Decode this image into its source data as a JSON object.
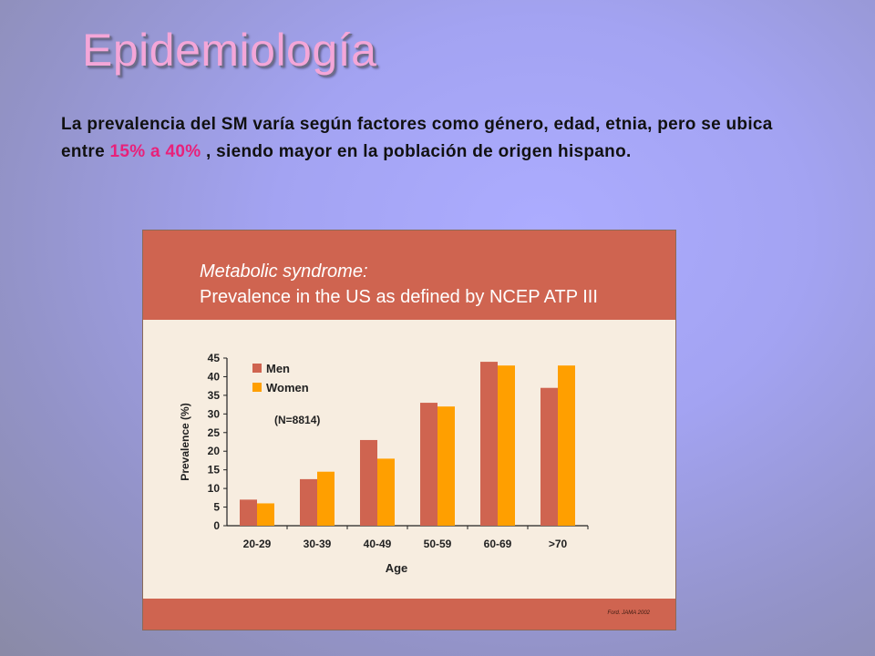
{
  "slide": {
    "title": "Epidemiología",
    "intro_part1": "La prevalencia del SM varía según factores como género, edad, etnia, pero se ubica entre ",
    "intro_highlight": "15% a 40%",
    "intro_part2": " , siendo mayor en la población de origen hispano."
  },
  "colors": {
    "header_band": "#cf6450",
    "men": "#cf6450",
    "women": "#ff9f00",
    "highlight": "#e8217a",
    "title": "#f4a6d8"
  },
  "chart_data": {
    "type": "bar",
    "title": "Metabolic syndrome:",
    "subtitle": "Prevalence in the US as defined by NCEP ATP III",
    "xlabel": "Age",
    "ylabel": "Prevalence (%)",
    "annotation": "(N=8814)",
    "source": "Ford. JAMA 2002",
    "categories": [
      "20-29",
      "30-39",
      "40-49",
      "50-59",
      "60-69",
      ">70"
    ],
    "series": [
      {
        "name": "Men",
        "values": [
          7,
          12.5,
          23,
          33,
          44,
          37
        ]
      },
      {
        "name": "Women",
        "values": [
          6,
          14.5,
          18,
          32,
          43,
          43
        ]
      }
    ],
    "ylim": [
      0,
      45
    ],
    "yticks": [
      0,
      5,
      10,
      15,
      20,
      25,
      30,
      35,
      40,
      45
    ],
    "legend_position": "top-left",
    "grid": false
  }
}
